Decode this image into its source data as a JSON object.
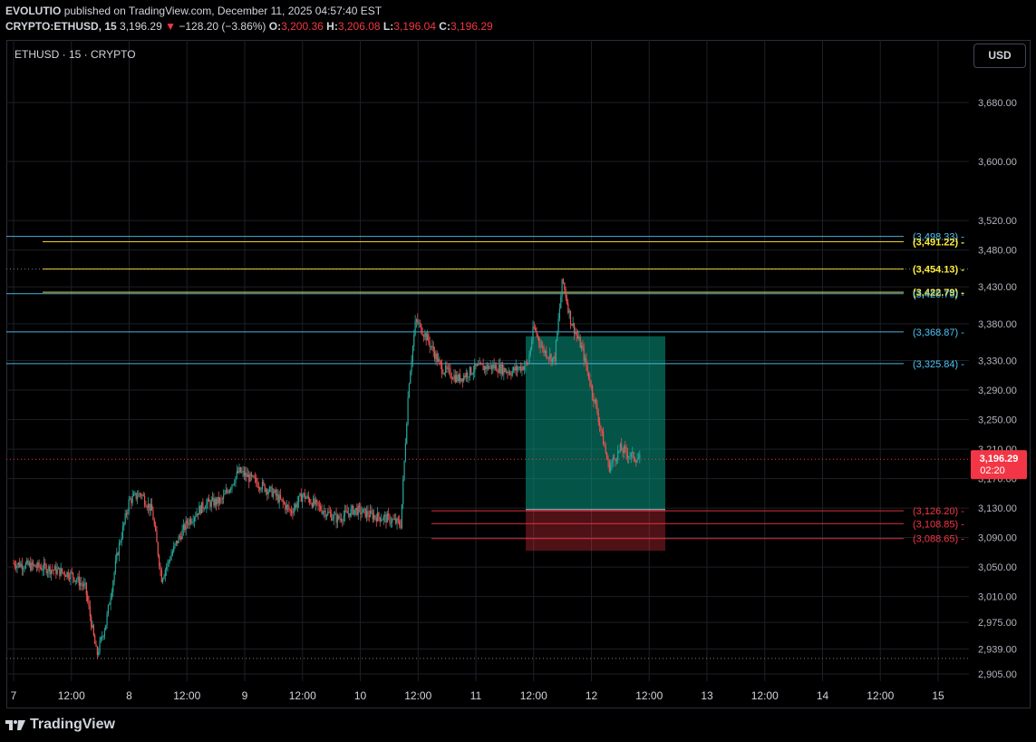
{
  "header": {
    "author": "EVOLUTIO",
    "published_text": "published on TradingView.com, December 11, 2025 04:57:40 EST",
    "symbol": "CRYPTO:ETHUSD, 15",
    "last": "3,196.29",
    "change_arrow": "▼",
    "change": "−128.20 (−3.86%)",
    "o_label": "O:",
    "o_value": "3,200.36",
    "h_label": "H:",
    "h_value": "3,206.08",
    "l_label": "L:",
    "l_value": "3,196.04",
    "c_label": "C:",
    "c_value": "3,196.29"
  },
  "legend": {
    "symbol_title": "ETHUSD · 15 · CRYPTO"
  },
  "currency_button": "USD",
  "footer": {
    "brand": "TradingView"
  },
  "price_axis": {
    "labels": [
      "3,680.00",
      "3,600.00",
      "3,520.00",
      "3,480.00",
      "3,430.00",
      "3,380.00",
      "3,330.00",
      "3,290.00",
      "3,250.00",
      "3,210.00",
      "3,170.00",
      "3,130.00",
      "3,090.00",
      "3,050.00",
      "3,010.00",
      "2,975.00",
      "2,939.00",
      "2,905.00"
    ],
    "current_price": "3,196.29",
    "countdown": "02:20"
  },
  "time_axis": {
    "labels": [
      "7",
      "12:00",
      "8",
      "12:00",
      "9",
      "12:00",
      "10",
      "12:00",
      "11",
      "12:00",
      "12",
      "12:00",
      "13",
      "12:00",
      "14",
      "12:00",
      "15"
    ]
  },
  "chart_data": {
    "type": "candlestick",
    "symbol": "ETHUSD",
    "interval": "15",
    "ylim": [
      2905,
      3720
    ],
    "current_price": 3196.29,
    "levels": [
      {
        "label": "(3,498.33)",
        "value": 3498.33,
        "color": "#4fc3f7",
        "kind": "support-resistance"
      },
      {
        "label": "(3,491.22)",
        "value": 3491.22,
        "color": "#ffeb3b",
        "kind": "fib"
      },
      {
        "label": "(3,454.13)",
        "value": 3454.13,
        "color": "#ffeb3b",
        "kind": "fib"
      },
      {
        "label": "(3,422.79)",
        "value": 3422.79,
        "color": "#ffeb3b",
        "kind": "fib"
      },
      {
        "label": "(3,420.70)",
        "value": 3420.7,
        "color": "#4fc3f7",
        "kind": "support-resistance"
      },
      {
        "label": "(3,368.87)",
        "value": 3368.87,
        "color": "#4fc3f7",
        "kind": "support-resistance"
      },
      {
        "label": "(3,325.84)",
        "value": 3325.84,
        "color": "#4fc3f7",
        "kind": "support-resistance"
      },
      {
        "label": "(3,126.20)",
        "value": 3126.2,
        "color": "#f23645",
        "kind": "entry"
      },
      {
        "label": "(3,108.85)",
        "value": 3108.85,
        "color": "#f23645",
        "kind": "entry"
      },
      {
        "label": "(3,088.65)",
        "value": 3088.65,
        "color": "#f23645",
        "kind": "entry"
      }
    ],
    "dotted_levels": [
      3454.13,
      3196.29,
      2926
    ],
    "position": {
      "type": "long",
      "entry": 3128,
      "target": 3363,
      "stop": 3072
    },
    "price_path": [
      [
        0,
        3055
      ],
      [
        0.3,
        3048
      ],
      [
        0.5,
        3040
      ],
      [
        0.62,
        3022
      ],
      [
        0.72,
        2930
      ],
      [
        0.8,
        2975
      ],
      [
        0.9,
        3070
      ],
      [
        1.0,
        3140
      ],
      [
        1.1,
        3150
      ],
      [
        1.2,
        3125
      ],
      [
        1.28,
        3035
      ],
      [
        1.4,
        3080
      ],
      [
        1.5,
        3110
      ],
      [
        1.65,
        3135
      ],
      [
        1.8,
        3140
      ],
      [
        1.95,
        3180
      ],
      [
        2.1,
        3165
      ],
      [
        2.25,
        3150
      ],
      [
        2.4,
        3125
      ],
      [
        2.5,
        3148
      ],
      [
        2.65,
        3130
      ],
      [
        2.8,
        3115
      ],
      [
        2.95,
        3128
      ],
      [
        3.1,
        3120
      ],
      [
        3.25,
        3115
      ],
      [
        3.35,
        3108
      ],
      [
        3.42,
        3300
      ],
      [
        3.48,
        3385
      ],
      [
        3.58,
        3360
      ],
      [
        3.7,
        3320
      ],
      [
        3.85,
        3305
      ],
      [
        4.0,
        3320
      ],
      [
        4.15,
        3322
      ],
      [
        4.3,
        3315
      ],
      [
        4.45,
        3325
      ],
      [
        4.5,
        3375
      ],
      [
        4.58,
        3345
      ],
      [
        4.68,
        3330
      ],
      [
        4.75,
        3440
      ],
      [
        4.82,
        3385
      ],
      [
        4.92,
        3345
      ],
      [
        5.05,
        3260
      ],
      [
        5.15,
        3185
      ],
      [
        5.25,
        3210
      ],
      [
        5.35,
        3200
      ],
      [
        5.42,
        3196.29
      ]
    ]
  }
}
